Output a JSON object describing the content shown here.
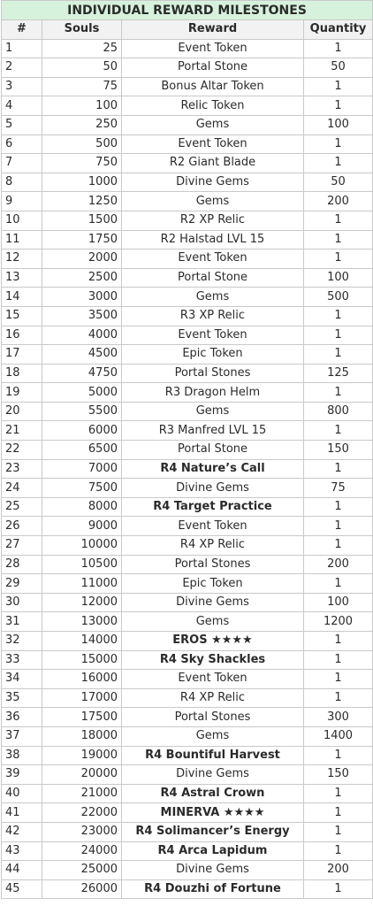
{
  "title": "INDIVIDUAL REWARD MILESTONES",
  "headers": [
    "#",
    "Souls",
    "Reward",
    "Quantity"
  ],
  "rows": [
    {
      "n": "1",
      "souls": "25",
      "reward": "Event Token",
      "qty": "1",
      "bold": false
    },
    {
      "n": "2",
      "souls": "50",
      "reward": "Portal Stone",
      "qty": "50",
      "bold": false
    },
    {
      "n": "3",
      "souls": "75",
      "reward": "Bonus Altar Token",
      "qty": "1",
      "bold": false
    },
    {
      "n": "4",
      "souls": "100",
      "reward": "Relic Token",
      "qty": "1",
      "bold": false
    },
    {
      "n": "5",
      "souls": "250",
      "reward": "Gems",
      "qty": "100",
      "bold": false
    },
    {
      "n": "6",
      "souls": "500",
      "reward": "Event Token",
      "qty": "1",
      "bold": false
    },
    {
      "n": "7",
      "souls": "750",
      "reward": "R2 Giant Blade",
      "qty": "1",
      "bold": false
    },
    {
      "n": "8",
      "souls": "1000",
      "reward": "Divine Gems",
      "qty": "50",
      "bold": false
    },
    {
      "n": "9",
      "souls": "1250",
      "reward": "Gems",
      "qty": "200",
      "bold": false
    },
    {
      "n": "10",
      "souls": "1500",
      "reward": "R2 XP Relic",
      "qty": "1",
      "bold": false
    },
    {
      "n": "11",
      "souls": "1750",
      "reward": "R2 Halstad LVL 15",
      "qty": "1",
      "bold": false
    },
    {
      "n": "12",
      "souls": "2000",
      "reward": "Event Token",
      "qty": "1",
      "bold": false
    },
    {
      "n": "13",
      "souls": "2500",
      "reward": "Portal Stone",
      "qty": "100",
      "bold": false
    },
    {
      "n": "14",
      "souls": "3000",
      "reward": "Gems",
      "qty": "500",
      "bold": false
    },
    {
      "n": "15",
      "souls": "3500",
      "reward": "R3 XP Relic",
      "qty": "1",
      "bold": false
    },
    {
      "n": "16",
      "souls": "4000",
      "reward": "Event Token",
      "qty": "1",
      "bold": false
    },
    {
      "n": "17",
      "souls": "4500",
      "reward": "Epic Token",
      "qty": "1",
      "bold": false
    },
    {
      "n": "18",
      "souls": "4750",
      "reward": "Portal Stones",
      "qty": "125",
      "bold": false
    },
    {
      "n": "19",
      "souls": "5000",
      "reward": "R3 Dragon Helm",
      "qty": "1",
      "bold": false
    },
    {
      "n": "20",
      "souls": "5500",
      "reward": "Gems",
      "qty": "800",
      "bold": false
    },
    {
      "n": "21",
      "souls": "6000",
      "reward": "R3 Manfred LVL 15",
      "qty": "1",
      "bold": false
    },
    {
      "n": "22",
      "souls": "6500",
      "reward": "Portal Stone",
      "qty": "150",
      "bold": false
    },
    {
      "n": "23",
      "souls": "7000",
      "reward": "R4 Nature’s Call",
      "qty": "1",
      "bold": true
    },
    {
      "n": "24",
      "souls": "7500",
      "reward": "Divine Gems",
      "qty": "75",
      "bold": false
    },
    {
      "n": "25",
      "souls": "8000",
      "reward": "R4 Target Practice",
      "qty": "1",
      "bold": true
    },
    {
      "n": "26",
      "souls": "9000",
      "reward": "Event Token",
      "qty": "1",
      "bold": false
    },
    {
      "n": "27",
      "souls": "10000",
      "reward": "R4 XP Relic",
      "qty": "1",
      "bold": false
    },
    {
      "n": "28",
      "souls": "10500",
      "reward": "Portal Stones",
      "qty": "200",
      "bold": false
    },
    {
      "n": "29",
      "souls": "11000",
      "reward": "Epic Token",
      "qty": "1",
      "bold": false
    },
    {
      "n": "30",
      "souls": "12000",
      "reward": "Divine Gems",
      "qty": "100",
      "bold": false
    },
    {
      "n": "31",
      "souls": "13000",
      "reward": "Gems",
      "qty": "1200",
      "bold": false
    },
    {
      "n": "32",
      "souls": "14000",
      "reward": "EROS ★★★★",
      "qty": "1",
      "bold": true
    },
    {
      "n": "33",
      "souls": "15000",
      "reward": "R4 Sky Shackles",
      "qty": "1",
      "bold": true
    },
    {
      "n": "34",
      "souls": "16000",
      "reward": "Event Token",
      "qty": "1",
      "bold": false
    },
    {
      "n": "35",
      "souls": "17000",
      "reward": "R4 XP Relic",
      "qty": "1",
      "bold": false
    },
    {
      "n": "36",
      "souls": "17500",
      "reward": "Portal Stones",
      "qty": "300",
      "bold": false
    },
    {
      "n": "37",
      "souls": "18000",
      "reward": "Gems",
      "qty": "1400",
      "bold": false
    },
    {
      "n": "38",
      "souls": "19000",
      "reward": "R4 Bountiful Harvest",
      "qty": "1",
      "bold": true
    },
    {
      "n": "39",
      "souls": "20000",
      "reward": "Divine Gems",
      "qty": "150",
      "bold": false
    },
    {
      "n": "40",
      "souls": "21000",
      "reward": "R4 Astral Crown",
      "qty": "1",
      "bold": true
    },
    {
      "n": "41",
      "souls": "22000",
      "reward": "MINERVA ★★★★",
      "qty": "1",
      "bold": true
    },
    {
      "n": "42",
      "souls": "23000",
      "reward": "R4 Solimancer’s Energy",
      "qty": "1",
      "bold": true
    },
    {
      "n": "43",
      "souls": "24000",
      "reward": "R4 Arca Lapidum",
      "qty": "1",
      "bold": true
    },
    {
      "n": "44",
      "souls": "25000",
      "reward": "Divine Gems",
      "qty": "200",
      "bold": false
    },
    {
      "n": "45",
      "souls": "26000",
      "reward": "R4 Douzhi of Fortune",
      "qty": "1",
      "bold": true
    }
  ]
}
